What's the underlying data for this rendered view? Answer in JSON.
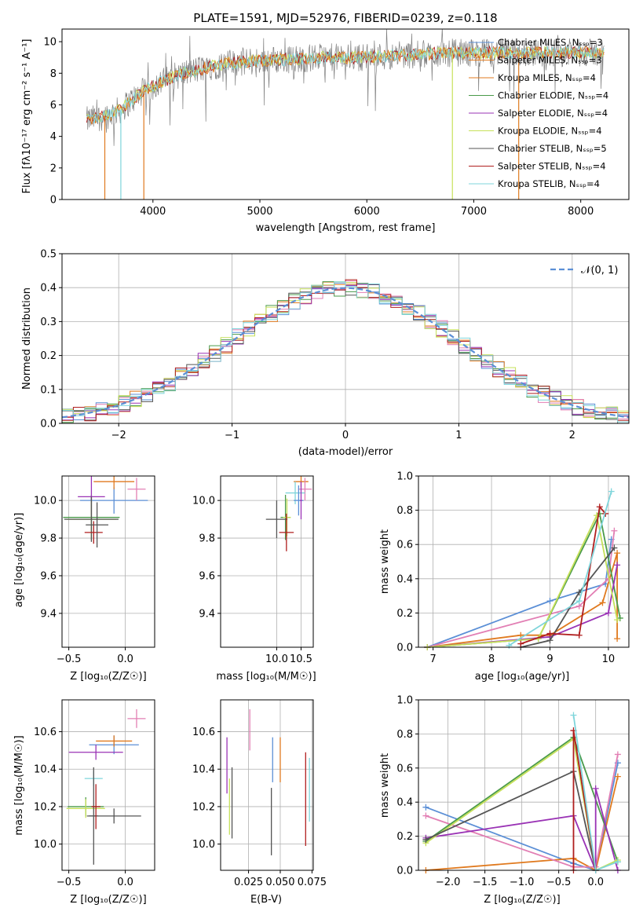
{
  "colors": {
    "blue": "#5b8fd6",
    "orange": "#e07a1f",
    "pink": "#e27fb4",
    "green": "#4a9a4a",
    "purple": "#9a33b5",
    "yellowgreen": "#c6e05a",
    "darkgray": "#555555",
    "darkred": "#b01e1e",
    "cyan": "#7fd5db",
    "gray": "#808080"
  },
  "chart_data": [
    {
      "id": "spectrum",
      "type": "line",
      "title": "PLATE=1591, MJD=52976, FIBERID=0239, z=0.118",
      "xlabel": "wavelength [Angstrom, rest frame]",
      "ylabel": "Flux [fλ10⁻¹⁷ erg cm⁻² s⁻¹ A⁻¹]",
      "xlim": [
        3150,
        8450
      ],
      "ylim": [
        0,
        10.8
      ],
      "x_ticks": [
        "4000",
        "5000",
        "6000",
        "7000",
        "8000"
      ],
      "y_ticks": [
        "0",
        "2",
        "4",
        "6",
        "8",
        "10"
      ],
      "continuum": {
        "x": [
          3380,
          3500,
          3600,
          3700,
          3800,
          3900,
          4000,
          4200,
          4400,
          4600,
          4800,
          5000,
          5300,
          5600,
          5900,
          6200,
          6500,
          6800,
          7100,
          7400,
          7700,
          8000,
          8200
        ],
        "y": [
          5.0,
          5.2,
          5.4,
          5.7,
          6.3,
          6.8,
          7.2,
          7.8,
          8.2,
          8.5,
          8.7,
          8.8,
          8.9,
          9.0,
          9.0,
          9.1,
          9.2,
          9.3,
          9.3,
          9.3,
          9.3,
          9.3,
          9.3
        ]
      },
      "legend": [
        "Chabrier MILES, Nₛₛₚ=3",
        "Salpeter MILES, Nₛₛₚ=3",
        "Kroupa MILES, Nₛₛₚ=4",
        "Chabrier ELODIE, Nₛₛₚ=4",
        "Salpeter ELODIE, Nₛₛₚ=4",
        "Kroupa ELODIE, Nₛₛₚ=4",
        "Chabrier STELIB, Nₛₛₚ=5",
        "Salpeter STELIB, Nₛₛₚ=4",
        "Kroupa STELIB, Nₛₛₚ=4"
      ],
      "legend_location": "lower-right"
    },
    {
      "id": "residuals",
      "type": "histogram",
      "xlabel": "(data-model)/error",
      "ylabel": "Normed distribution",
      "xlim": [
        -2.5,
        2.5
      ],
      "ylim": [
        0,
        0.5
      ],
      "x_ticks": [
        "−2",
        "−1",
        "0",
        "1",
        "2"
      ],
      "y_ticks": [
        "0.0",
        "0.1",
        "0.2",
        "0.3",
        "0.4",
        "0.5"
      ],
      "bin_width": 0.1,
      "legend": [
        "𝒩(0, 1)"
      ],
      "legend_location": "top-right"
    },
    {
      "id": "age-vs-Z",
      "type": "scatter",
      "xlabel": "Z [log₁₀(Z/Z☉)]",
      "ylabel": "age  [log₁₀(age/yr)]",
      "xlim": [
        -0.56,
        0.26
      ],
      "ylim": [
        9.22,
        10.13
      ],
      "x_ticks": [
        -0.5,
        0.0
      ],
      "y_ticks": [
        9.4,
        9.6,
        9.8,
        10.0
      ],
      "points": [
        {
          "x": -0.1,
          "y": 10.0,
          "xerr": 0.3,
          "yerr": 0.07,
          "c": "blue"
        },
        {
          "x": -0.1,
          "y": 10.1,
          "xerr": 0.18,
          "yerr": 0.04,
          "c": "orange"
        },
        {
          "x": 0.1,
          "y": 10.06,
          "xerr": 0.08,
          "yerr": 0.06,
          "c": "pink"
        },
        {
          "x": -0.3,
          "y": 9.91,
          "xerr": 0.25,
          "yerr": 0.12,
          "c": "green"
        },
        {
          "x": -0.3,
          "y": 10.02,
          "xerr": 0.12,
          "yerr": 0.12,
          "c": "purple"
        },
        {
          "x": -0.3,
          "y": 9.9,
          "xerr": 0.22,
          "yerr": 0.1,
          "c": "yellowgreen"
        },
        {
          "x": -0.3,
          "y": 9.9,
          "xerr": 0.24,
          "yerr": 0.12,
          "c": "darkgray"
        },
        {
          "x": -0.28,
          "y": 9.83,
          "xerr": 0.08,
          "yerr": 0.06,
          "c": "darkred"
        },
        {
          "x": -0.25,
          "y": 9.87,
          "xerr": 0.1,
          "yerr": 0.12,
          "c": "darkgray"
        }
      ]
    },
    {
      "id": "age-vs-mass",
      "type": "scatter",
      "xlabel": "mass [log₁₀(M/M☉)]",
      "ylabel": "",
      "xlim": [
        8.85,
        10.75
      ],
      "ylim": [
        9.22,
        10.13
      ],
      "x_ticks": [
        10.0,
        10.5
      ],
      "y_ticks": [
        9.4,
        9.6,
        9.8,
        10.0
      ],
      "points": [
        {
          "x": 10.5,
          "y": 10.1,
          "xerr": 0.15,
          "yerr": 0.03,
          "c": "orange"
        },
        {
          "x": 10.58,
          "y": 10.06,
          "xerr": 0.14,
          "yerr": 0.06,
          "c": "pink"
        },
        {
          "x": 10.38,
          "y": 10.04,
          "xerr": 0.2,
          "yerr": 0.06,
          "c": "cyan"
        },
        {
          "x": 10.45,
          "y": 10.0,
          "xerr": 0.1,
          "yerr": 0.08,
          "c": "blue"
        },
        {
          "x": 10.18,
          "y": 9.91,
          "xerr": 0.1,
          "yerr": 0.12,
          "c": "green"
        },
        {
          "x": 10.21,
          "y": 9.91,
          "xerr": 0.08,
          "yerr": 0.1,
          "c": "yellowgreen"
        },
        {
          "x": 10.0,
          "y": 9.9,
          "xerr": 0.22,
          "yerr": 0.1,
          "c": "darkgray"
        },
        {
          "x": 10.5,
          "y": 10.0,
          "xerr": 0.02,
          "yerr": 0.1,
          "c": "purple"
        },
        {
          "x": 10.2,
          "y": 9.83,
          "xerr": 0.15,
          "yerr": 0.1,
          "c": "darkred"
        }
      ]
    },
    {
      "id": "weight-vs-age",
      "type": "line",
      "xlabel": "age  [log₁₀(age/yr)]",
      "ylabel": "mass weight",
      "xlim": [
        6.75,
        10.35
      ],
      "ylim": [
        0,
        1.0
      ],
      "x_ticks": [
        7,
        8,
        9,
        10
      ],
      "y_ticks": [
        0.0,
        0.2,
        0.4,
        0.6,
        0.8,
        1.0
      ],
      "series": [
        {
          "c": "blue",
          "x": [
            6.9,
            9.0,
            9.95,
            10.05
          ],
          "y": [
            0.0,
            0.27,
            0.37,
            0.63
          ]
        },
        {
          "c": "orange",
          "x": [
            6.9,
            8.5,
            9.0,
            9.9,
            10.15,
            10.15
          ],
          "y": [
            0.0,
            0.07,
            0.07,
            0.26,
            0.55,
            0.05
          ]
        },
        {
          "c": "pink",
          "x": [
            6.9,
            9.5,
            10.0,
            10.1
          ],
          "y": [
            0.0,
            0.24,
            0.4,
            0.68
          ]
        },
        {
          "c": "green",
          "x": [
            6.9,
            8.8,
            9.85,
            10.2
          ],
          "y": [
            0.0,
            0.05,
            0.78,
            0.17
          ]
        },
        {
          "c": "purple",
          "x": [
            6.9,
            9.0,
            10.0,
            10.15
          ],
          "y": [
            0.0,
            0.06,
            0.2,
            0.48
          ]
        },
        {
          "c": "yellowgreen",
          "x": [
            6.9,
            8.8,
            9.8,
            10.15
          ],
          "y": [
            0.0,
            0.05,
            0.77,
            0.16
          ]
        },
        {
          "c": "darkgray",
          "x": [
            8.5,
            9.0,
            9.5,
            10.1
          ],
          "y": [
            0.0,
            0.04,
            0.32,
            0.58
          ]
        },
        {
          "c": "darkred",
          "x": [
            8.5,
            9.0,
            9.5,
            9.85,
            9.95
          ],
          "y": [
            0.02,
            0.08,
            0.07,
            0.82,
            0.78
          ]
        },
        {
          "c": "cyan",
          "x": [
            8.3,
            9.5,
            10.05
          ],
          "y": [
            0.01,
            0.27,
            0.91
          ]
        }
      ]
    },
    {
      "id": "mass-vs-Z",
      "type": "scatter",
      "xlabel": "Z [log₁₀(Z/Z☉)]",
      "ylabel": "mass [log₁₀(M/M☉)]",
      "xlim": [
        -0.56,
        0.26
      ],
      "ylim": [
        9.86,
        10.77
      ],
      "x_ticks": [
        -0.5,
        0.0
      ],
      "y_ticks": [
        10.0,
        10.2,
        10.4,
        10.6
      ],
      "points": [
        {
          "x": -0.1,
          "y": 10.53,
          "xerr": 0.22,
          "yerr": 0.05,
          "c": "blue"
        },
        {
          "x": -0.1,
          "y": 10.55,
          "xerr": 0.16,
          "yerr": 0.03,
          "c": "orange"
        },
        {
          "x": 0.1,
          "y": 10.67,
          "xerr": 0.08,
          "yerr": 0.05,
          "c": "pink"
        },
        {
          "x": -0.28,
          "y": 10.35,
          "xerr": 0.08,
          "yerr": 0.04,
          "c": "cyan"
        },
        {
          "x": -0.26,
          "y": 10.49,
          "xerr": 0.24,
          "yerr": 0.04,
          "c": "purple"
        },
        {
          "x": -0.35,
          "y": 10.2,
          "xerr": 0.16,
          "yerr": 0.05,
          "c": "green"
        },
        {
          "x": -0.35,
          "y": 10.19,
          "xerr": 0.17,
          "yerr": 0.05,
          "c": "yellowgreen"
        },
        {
          "x": -0.1,
          "y": 10.15,
          "xerr": 0.24,
          "yerr": 0.04,
          "c": "darkgray"
        },
        {
          "x": -0.28,
          "y": 10.15,
          "xerr": 0.04,
          "yerr": 0.26,
          "c": "darkgray"
        },
        {
          "x": -0.26,
          "y": 10.2,
          "xerr": 0.04,
          "yerr": 0.12,
          "c": "darkred"
        }
      ]
    },
    {
      "id": "mass-vs-EBV",
      "type": "scatter",
      "xlabel": "E(B-V)",
      "ylabel": "",
      "xlim": [
        0.003,
        0.076
      ],
      "ylim": [
        9.86,
        10.77
      ],
      "x_ticks": [
        0.025,
        0.05,
        0.075
      ],
      "y_ticks": [
        10.0,
        10.2,
        10.4,
        10.6
      ],
      "points": [
        {
          "x": 0.008,
          "y": 10.42,
          "xerr": 0,
          "yerr": 0.15,
          "c": "purple"
        },
        {
          "x": 0.01,
          "y": 10.2,
          "xerr": 0,
          "yerr": 0.15,
          "c": "yellowgreen"
        },
        {
          "x": 0.012,
          "y": 10.22,
          "xerr": 0,
          "yerr": 0.19,
          "c": "darkgray"
        },
        {
          "x": 0.026,
          "y": 10.61,
          "xerr": 0,
          "yerr": 0.11,
          "c": "pink"
        },
        {
          "x": 0.043,
          "y": 10.12,
          "xerr": 0,
          "yerr": 0.18,
          "c": "darkgray"
        },
        {
          "x": 0.044,
          "y": 10.45,
          "xerr": 0,
          "yerr": 0.12,
          "c": "blue"
        },
        {
          "x": 0.05,
          "y": 10.45,
          "xerr": 0,
          "yerr": 0.12,
          "c": "orange"
        },
        {
          "x": 0.07,
          "y": 10.24,
          "xerr": 0,
          "yerr": 0.25,
          "c": "darkred"
        },
        {
          "x": 0.073,
          "y": 10.29,
          "xerr": 0,
          "yerr": 0.17,
          "c": "cyan"
        }
      ]
    },
    {
      "id": "weight-vs-Z",
      "type": "line",
      "xlabel": "Z [log₁₀(Z/Z☉)]",
      "ylabel": "mass weight",
      "xlim": [
        -2.4,
        0.45
      ],
      "ylim": [
        0,
        1.0
      ],
      "x_ticks": [
        -2.0,
        -1.5,
        -1.0,
        -0.5,
        0.0
      ],
      "y_ticks": [
        0.0,
        0.2,
        0.4,
        0.6,
        0.8,
        1.0
      ],
      "series": [
        {
          "c": "blue",
          "x": [
            -2.3,
            -0.3,
            0.0,
            0.3
          ],
          "y": [
            0.37,
            0.04,
            0.0,
            0.63
          ]
        },
        {
          "c": "orange",
          "x": [
            -2.3,
            -0.3,
            0.0,
            0.3
          ],
          "y": [
            0.0,
            0.07,
            0.0,
            0.55
          ]
        },
        {
          "c": "pink",
          "x": [
            -2.3,
            -0.3,
            0.0,
            0.3
          ],
          "y": [
            0.32,
            0.02,
            0.02,
            0.68
          ]
        },
        {
          "c": "green",
          "x": [
            -2.3,
            -0.3,
            0.3
          ],
          "y": [
            0.17,
            0.78,
            0.05
          ]
        },
        {
          "c": "purple",
          "x": [
            -2.3,
            -0.3,
            0.0,
            0.0,
            0.3
          ],
          "y": [
            0.19,
            0.32,
            0.0,
            0.48,
            0.0
          ]
        },
        {
          "c": "yellowgreen",
          "x": [
            -2.3,
            -0.3,
            0.0,
            0.3
          ],
          "y": [
            0.16,
            0.77,
            0.0,
            0.06
          ]
        },
        {
          "c": "darkgray",
          "x": [
            -2.3,
            -0.3,
            0.0
          ],
          "y": [
            0.18,
            0.58,
            0.0
          ]
        },
        {
          "c": "darkred",
          "x": [
            -0.3,
            -0.3,
            0.0
          ],
          "y": [
            0.0,
            0.82,
            0.0
          ]
        },
        {
          "c": "cyan",
          "x": [
            -0.3,
            0.0,
            0.3
          ],
          "y": [
            0.91,
            0.0,
            0.05
          ]
        }
      ]
    }
  ]
}
